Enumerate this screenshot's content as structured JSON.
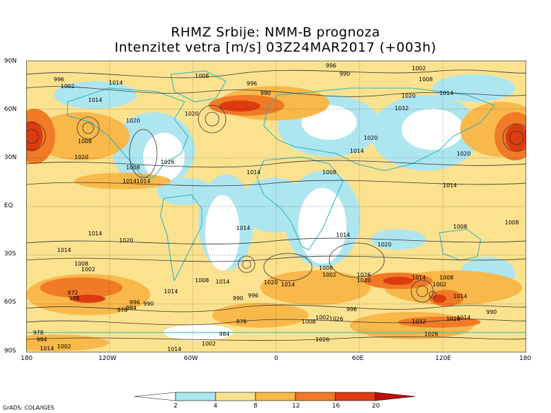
{
  "title": "RHMZ Srbije: NMM-B prognoza",
  "subtitle": "Intenzitet vetra [m/s] 03Z24MAR2017 (+003h)",
  "lat_labels": [
    "90N",
    "60N",
    "30N",
    "EQ",
    "30S",
    "60S",
    "90S"
  ],
  "lon_labels": [
    "180",
    "120W",
    "60W",
    "0",
    "60E",
    "120E",
    "180"
  ],
  "colorbar": {
    "ticks": [
      "2",
      "4",
      "8",
      "12",
      "16",
      "20"
    ],
    "colors": [
      "#ffffff",
      "#aee6f0",
      "#fbe28f",
      "#f8b84a",
      "#f07a26",
      "#de3b10",
      "#b81006"
    ]
  },
  "credit": "GrADS: COLA/IGES",
  "pressure_labels": [
    "1002",
    "996",
    "990",
    "1008",
    "1014",
    "1020",
    "1026",
    "1032",
    "984",
    "978",
    "972"
  ]
}
